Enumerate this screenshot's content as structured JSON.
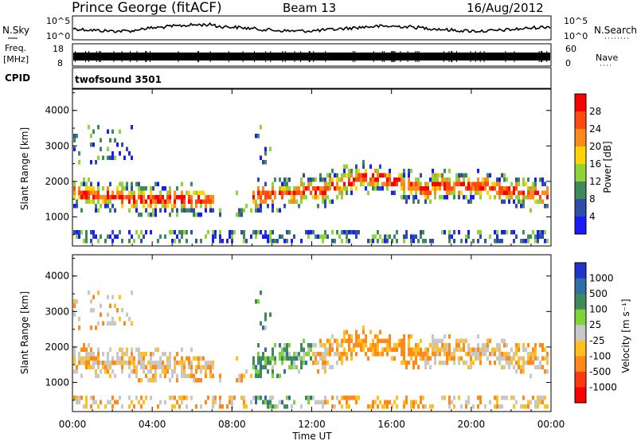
{
  "header": {
    "station": "Prince George (fitACF)",
    "beam": "Beam 13",
    "date": "16/Aug/2012"
  },
  "strips": {
    "nsky_label": "N.Sky",
    "nsky_ticks": [
      "10^5",
      "10^0"
    ],
    "nsearch_label": "N.Search",
    "freq_label_1": "Freq.",
    "freq_label_2": "[MHz]",
    "freq_ticks": [
      "18",
      "8"
    ],
    "nave_label": "Nave",
    "nave_ticks": [
      "60",
      "0"
    ],
    "cpid_label": "CPID",
    "cpid_value": "twofsound 3501"
  },
  "chart_data": [
    {
      "type": "heatmap",
      "title": "",
      "xlabel": "",
      "ylabel": "Slant Range [km]",
      "xlim": [
        0,
        24
      ],
      "ylim": [
        180,
        4600
      ],
      "yticks": [
        "1000",
        "2000",
        "3000",
        "4000"
      ],
      "colorbar": {
        "label": "Power [dB]",
        "ticks": [
          "4",
          "8",
          "12",
          "16",
          "20",
          "24",
          "28"
        ],
        "colors": [
          "#1a1aff",
          "#2c4ea8",
          "#3f8a5c",
          "#8ed638",
          "#ffd400",
          "#ff8a1a",
          "#ff4a10",
          "#ff0000"
        ]
      }
    },
    {
      "type": "heatmap",
      "title": "",
      "xlabel": "Time UT",
      "ylabel": "Slant Range [km]",
      "xlim": [
        0,
        24
      ],
      "ylim": [
        180,
        4600
      ],
      "xticks": [
        "00:00",
        "04:00",
        "08:00",
        "12:00",
        "16:00",
        "20:00",
        "00:00"
      ],
      "yticks": [
        "1000",
        "2000",
        "3000",
        "4000"
      ],
      "colorbar": {
        "label": "Velocity [m s⁻¹]",
        "ticks": [
          "1000",
          "500",
          "100",
          "25",
          "-25",
          "-100",
          "-500",
          "-1000"
        ],
        "colors": [
          "#2233cc",
          "#2f6fa8",
          "#3f8a5c",
          "#7fd43a",
          "#c8c8c8",
          "#ffc020",
          "#ff8a1a",
          "#ff3a10",
          "#ff0000"
        ]
      }
    }
  ]
}
